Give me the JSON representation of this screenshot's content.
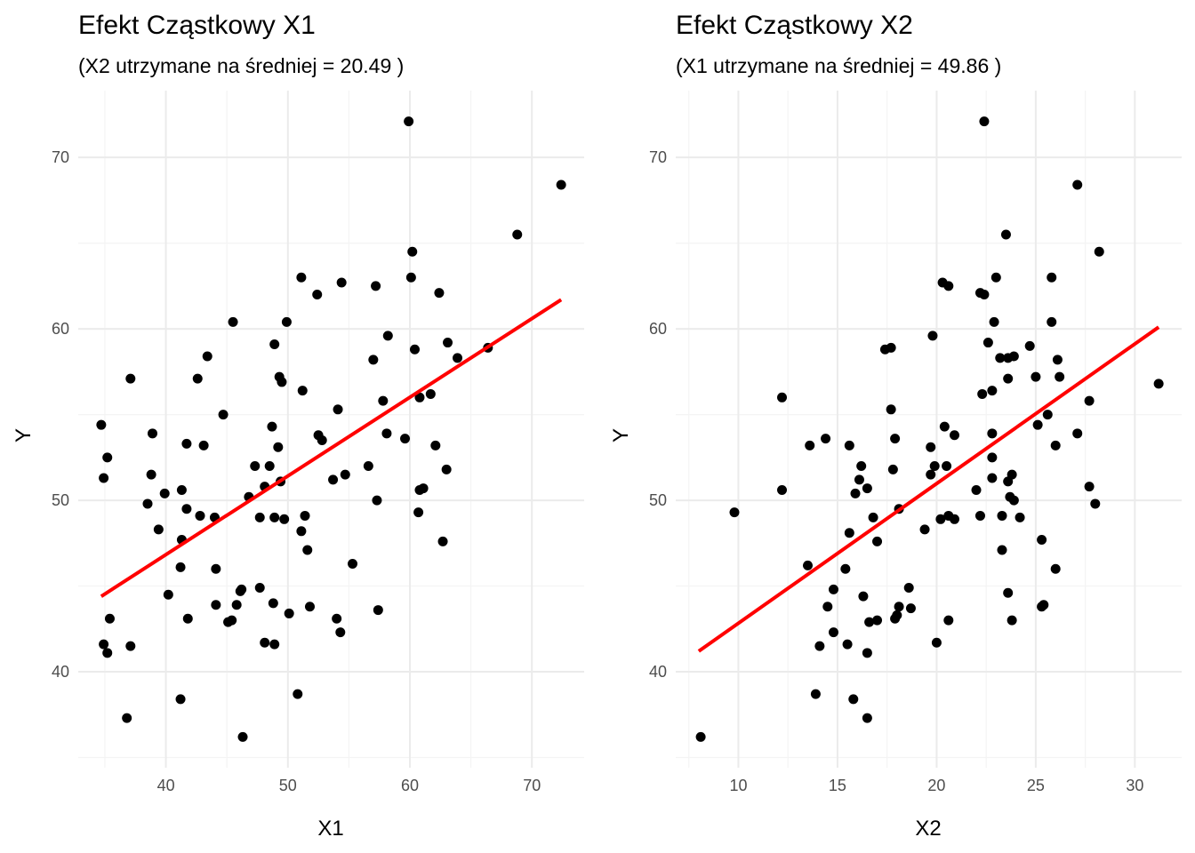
{
  "colors": {
    "points": "#000000",
    "fit_line": "#ff0000",
    "grid_major": "#ebebeb",
    "grid_minor": "#f4f4f4",
    "tick_text": "#4d4d4d"
  },
  "chart_data": [
    {
      "type": "scatter",
      "title": "Efekt Cząstkowy X1",
      "subtitle": "(X2 utrzymane na średniej = 20.49 )",
      "xlabel": "X1",
      "ylabel": "Y",
      "xlim": [
        34.7,
        72.4
      ],
      "ylim": [
        36.2,
        72.1
      ],
      "xticks": [
        40,
        50,
        60,
        70
      ],
      "yticks": [
        40,
        50,
        60,
        70
      ],
      "grid": true,
      "fit_line": {
        "x": [
          34.7,
          72.4
        ],
        "y": [
          44.4,
          61.7
        ]
      },
      "points": [
        [
          34.7,
          54.4
        ],
        [
          34.9,
          51.3
        ],
        [
          35.2,
          52.5
        ],
        [
          35.4,
          43.1
        ],
        [
          35.2,
          41.1
        ],
        [
          34.9,
          41.6
        ],
        [
          36.8,
          37.3
        ],
        [
          37.1,
          57.1
        ],
        [
          37.1,
          41.5
        ],
        [
          38.5,
          49.8
        ],
        [
          38.8,
          51.5
        ],
        [
          38.9,
          53.9
        ],
        [
          39.4,
          48.3
        ],
        [
          39.9,
          50.4
        ],
        [
          40.2,
          44.5
        ],
        [
          41.2,
          38.4
        ],
        [
          41.2,
          46.1
        ],
        [
          41.3,
          50.6
        ],
        [
          41.3,
          47.7
        ],
        [
          41.7,
          49.5
        ],
        [
          41.7,
          53.3
        ],
        [
          41.8,
          43.1
        ],
        [
          42.6,
          57.1
        ],
        [
          42.8,
          49.1
        ],
        [
          43.1,
          53.2
        ],
        [
          43.4,
          58.4
        ],
        [
          44,
          49
        ],
        [
          44.1,
          46
        ],
        [
          44.1,
          43.9
        ],
        [
          44.7,
          55
        ],
        [
          45.1,
          42.9
        ],
        [
          45.4,
          43
        ],
        [
          45.5,
          60.4
        ],
        [
          45.8,
          43.9
        ],
        [
          46.1,
          44.7
        ],
        [
          46.2,
          44.8
        ],
        [
          46.3,
          36.2
        ],
        [
          46.8,
          50.2
        ],
        [
          47.3,
          52
        ],
        [
          47.7,
          49
        ],
        [
          47.7,
          44.9
        ],
        [
          48.1,
          50.8
        ],
        [
          48.1,
          41.7
        ],
        [
          48.5,
          52
        ],
        [
          48.7,
          54.3
        ],
        [
          48.8,
          44
        ],
        [
          48.9,
          49
        ],
        [
          48.9,
          41.6
        ],
        [
          48.9,
          59.1
        ],
        [
          49.2,
          53.1
        ],
        [
          49.3,
          57.2
        ],
        [
          49.4,
          51.1
        ],
        [
          49.5,
          56.9
        ],
        [
          49.7,
          48.9
        ],
        [
          49.9,
          60.4
        ],
        [
          50.1,
          43.4
        ],
        [
          50.8,
          38.7
        ],
        [
          51.1,
          48.2
        ],
        [
          51.1,
          63
        ],
        [
          51.2,
          56.4
        ],
        [
          51.4,
          49.1
        ],
        [
          51.6,
          47.1
        ],
        [
          51.8,
          43.8
        ],
        [
          52.4,
          62
        ],
        [
          52.5,
          53.8
        ],
        [
          52.8,
          53.5
        ],
        [
          53.7,
          51.2
        ],
        [
          54,
          43.1
        ],
        [
          54.1,
          55.3
        ],
        [
          54.3,
          42.3
        ],
        [
          54.4,
          62.7
        ],
        [
          54.7,
          51.5
        ],
        [
          55.3,
          46.3
        ],
        [
          56.6,
          52
        ],
        [
          57,
          58.2
        ],
        [
          57.2,
          62.5
        ],
        [
          57.3,
          50
        ],
        [
          57.4,
          43.6
        ],
        [
          57.8,
          55.8
        ],
        [
          58.1,
          53.9
        ],
        [
          58.2,
          59.6
        ],
        [
          59.6,
          53.6
        ],
        [
          59.9,
          72.1
        ],
        [
          60.1,
          63
        ],
        [
          60.2,
          64.5
        ],
        [
          60.4,
          58.8
        ],
        [
          60.7,
          49.3
        ],
        [
          60.8,
          50.6
        ],
        [
          60.8,
          56
        ],
        [
          61.1,
          50.7
        ],
        [
          61.7,
          56.2
        ],
        [
          62.1,
          53.2
        ],
        [
          62.4,
          62.1
        ],
        [
          62.7,
          47.6
        ],
        [
          63,
          51.8
        ],
        [
          63.1,
          59.2
        ],
        [
          63.9,
          58.3
        ],
        [
          66.4,
          58.9
        ],
        [
          68.8,
          65.5
        ],
        [
          72.4,
          68.4
        ]
      ]
    },
    {
      "type": "scatter",
      "title": "Efekt Cząstkowy X2",
      "subtitle": "(X1 utrzymane na średniej = 49.86 )",
      "xlabel": "X2",
      "ylabel": "Y",
      "xlim": [
        8,
        31.2
      ],
      "ylim": [
        36.2,
        72.1
      ],
      "xticks": [
        10,
        15,
        20,
        25,
        30
      ],
      "yticks": [
        40,
        50,
        60,
        70
      ],
      "grid": true,
      "fit_line": {
        "x": [
          8,
          31.2
        ],
        "y": [
          41.2,
          60.1
        ]
      },
      "points": [
        [
          8.1,
          36.2
        ],
        [
          9.8,
          49.3
        ],
        [
          12.2,
          56
        ],
        [
          12.2,
          50.6
        ],
        [
          13.5,
          46.2
        ],
        [
          13.6,
          53.2
        ],
        [
          13.9,
          38.7
        ],
        [
          14.1,
          41.5
        ],
        [
          14.4,
          53.6
        ],
        [
          14.5,
          43.8
        ],
        [
          14.8,
          44.8
        ],
        [
          14.8,
          42.3
        ],
        [
          15.4,
          46
        ],
        [
          15.5,
          41.6
        ],
        [
          15.6,
          53.2
        ],
        [
          15.6,
          48.1
        ],
        [
          15.8,
          38.4
        ],
        [
          15.9,
          50.4
        ],
        [
          16.1,
          51.2
        ],
        [
          16.2,
          52
        ],
        [
          16.3,
          44.4
        ],
        [
          16.5,
          41.1
        ],
        [
          16.5,
          50.7
        ],
        [
          16.5,
          37.3
        ],
        [
          16.6,
          42.9
        ],
        [
          16.8,
          49
        ],
        [
          17,
          47.6
        ],
        [
          17,
          43
        ],
        [
          17.4,
          58.8
        ],
        [
          17.7,
          58.9
        ],
        [
          17.7,
          55.3
        ],
        [
          17.8,
          51.8
        ],
        [
          17.9,
          53.6
        ],
        [
          17.9,
          43.1
        ],
        [
          18,
          43.3
        ],
        [
          18.1,
          43.8
        ],
        [
          18.1,
          49.5
        ],
        [
          18.6,
          44.9
        ],
        [
          18.7,
          43.7
        ],
        [
          19.4,
          48.3
        ],
        [
          19.7,
          53.1
        ],
        [
          19.7,
          51.5
        ],
        [
          19.8,
          59.6
        ],
        [
          19.9,
          52
        ],
        [
          20,
          41.7
        ],
        [
          20.2,
          48.9
        ],
        [
          20.3,
          62.7
        ],
        [
          20.4,
          54.3
        ],
        [
          20.5,
          52
        ],
        [
          20.6,
          62.5
        ],
        [
          20.6,
          49.1
        ],
        [
          20.6,
          43
        ],
        [
          20.9,
          53.8
        ],
        [
          20.9,
          48.9
        ],
        [
          22,
          50.6
        ],
        [
          22.2,
          62.1
        ],
        [
          22.2,
          49.1
        ],
        [
          22.3,
          56.2
        ],
        [
          22.4,
          62
        ],
        [
          22.4,
          72.1
        ],
        [
          22.6,
          59.2
        ],
        [
          22.8,
          51.3
        ],
        [
          22.8,
          52.5
        ],
        [
          22.8,
          53.9
        ],
        [
          22.8,
          56.4
        ],
        [
          22.9,
          60.4
        ],
        [
          23,
          63
        ],
        [
          23.2,
          58.3
        ],
        [
          23.3,
          47.1
        ],
        [
          23.3,
          49.1
        ],
        [
          23.5,
          65.5
        ],
        [
          23.6,
          57.1
        ],
        [
          23.6,
          51.1
        ],
        [
          23.6,
          44.6
        ],
        [
          23.6,
          58.3
        ],
        [
          23.7,
          50.2
        ],
        [
          23.8,
          43
        ],
        [
          23.8,
          51.5
        ],
        [
          23.9,
          50
        ],
        [
          23.9,
          58.4
        ],
        [
          24.2,
          49
        ],
        [
          24.7,
          59
        ],
        [
          25,
          57.2
        ],
        [
          25.1,
          54.4
        ],
        [
          25.3,
          47.7
        ],
        [
          25.3,
          43.8
        ],
        [
          25.4,
          43.9
        ],
        [
          25.6,
          55
        ],
        [
          25.8,
          60.4
        ],
        [
          25.8,
          63
        ],
        [
          26,
          53.2
        ],
        [
          26,
          46
        ],
        [
          26.1,
          58.2
        ],
        [
          26.2,
          57.2
        ],
        [
          27.1,
          68.4
        ],
        [
          27.1,
          53.9
        ],
        [
          27.7,
          50.8
        ],
        [
          27.7,
          55.8
        ],
        [
          28,
          49.8
        ],
        [
          28.2,
          64.5
        ],
        [
          31.2,
          56.8
        ]
      ]
    }
  ]
}
